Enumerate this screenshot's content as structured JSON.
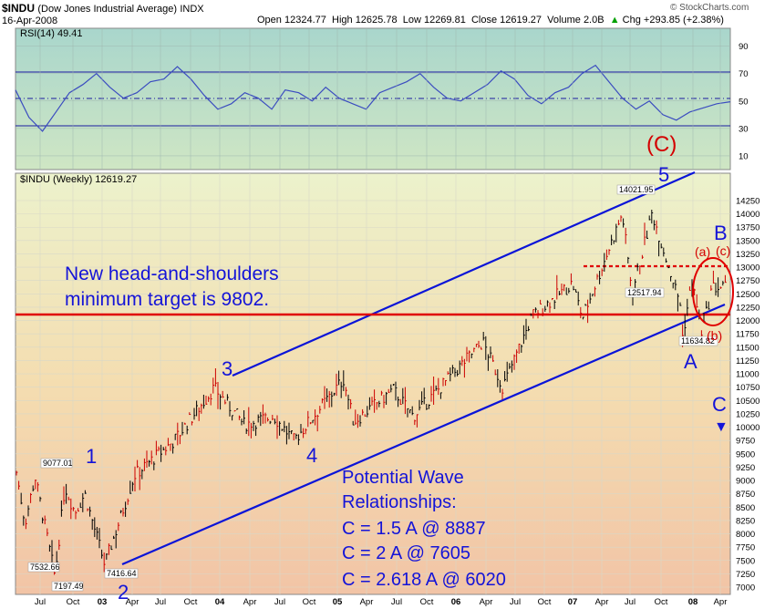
{
  "header": {
    "symbol": "$INDU",
    "name": "(Dow Jones Industrial Average)",
    "exchange": "INDX",
    "date": "16-Apr-2008",
    "open_label": "Open",
    "open": "12324.77",
    "high_label": "High",
    "high": "12625.78",
    "low_label": "Low",
    "low": "12269.81",
    "close_label": "Close",
    "close": "12619.27",
    "volume_label": "Volume",
    "volume": "2.0B",
    "chg_label": "Chg",
    "chg": "+293.85 (+2.38%)",
    "source": "© StockCharts.com",
    "up_arrow": "▲"
  },
  "rsi_panel": {
    "label": "RSI(14) 49.41",
    "ticks": [
      90,
      70,
      50,
      30,
      10
    ],
    "overbought": 70,
    "oversold": 30,
    "midline": 50,
    "colors": {
      "line": "#3b4cc0",
      "bands": "#1a1aa0",
      "bg_top": "#a9d6cc",
      "bg_bottom": "#cfe6c4"
    }
  },
  "price_panel": {
    "label": "$INDU (Weekly) 12619.27",
    "colors": {
      "up": "#000000",
      "down": "#cc0000",
      "channel": "#0a14d8",
      "neckline": "#e00000",
      "wave_text": "#1414d8",
      "corrective_text": "#d40000",
      "bg_top": "#eaf0c8",
      "bg_bottom": "#f2c9a8"
    }
  },
  "annotations": {
    "headline_line1": "New head-and-shoulders",
    "headline_line2": "minimum target is 9802.",
    "wave_title_line1": "Potential Wave",
    "wave_title_line2": "Relationships:",
    "rel1": "C = 1.5 A @ 8887",
    "rel2": "C = 2 A @ 7605",
    "rel3": "C = 2.618 A @ 6020",
    "wave_1": "1",
    "wave_2": "2",
    "wave_3": "3",
    "wave_4": "4",
    "wave_5": "5",
    "wave_C_major": "(C)",
    "wave_A": "A",
    "wave_B": "B",
    "wave_C": "C",
    "sub_a": "(a)",
    "sub_b": "(b)",
    "sub_c": "(c)",
    "down_arrow": "▼",
    "lbl_9077": "9077.01",
    "lbl_7532": "7532.66",
    "lbl_7197": "7197.49",
    "lbl_7416": "7416.64",
    "lbl_14021": "14021.95",
    "lbl_12517": "12517.94",
    "lbl_11634": "11634.82"
  },
  "chart_data": {
    "type": "line",
    "title": "$INDU (Dow Jones Industrial Average) INDX",
    "timeframe": "Weekly",
    "x_ticks": [
      "Jul",
      "Oct",
      "03",
      "Apr",
      "Jul",
      "Oct",
      "04",
      "Apr",
      "Jul",
      "Oct",
      "05",
      "Apr",
      "Jul",
      "Oct",
      "06",
      "Apr",
      "Jul",
      "Oct",
      "07",
      "Apr",
      "Jul",
      "Oct",
      "08",
      "Apr"
    ],
    "y_ticks": [
      7000,
      7250,
      7500,
      7750,
      8000,
      8250,
      8500,
      8750,
      9000,
      9250,
      9500,
      9750,
      10000,
      10250,
      10500,
      10750,
      11000,
      11250,
      11500,
      11750,
      12000,
      12250,
      12500,
      12750,
      13000,
      13250,
      13500,
      13750,
      14000,
      14250
    ],
    "ylim": [
      6900,
      14550
    ],
    "price_path_approx": [
      [
        "2002-06",
        9300
      ],
      [
        "2002-07",
        8200
      ],
      [
        "2002-08",
        9077
      ],
      [
        "2002-10",
        7197
      ],
      [
        "2002-11",
        8900
      ],
      [
        "2002-12",
        8400
      ],
      [
        "2003-01",
        8750
      ],
      [
        "2003-03",
        7416
      ],
      [
        "2003-06",
        9100
      ],
      [
        "2003-10",
        9750
      ],
      [
        "2004-02",
        10737
      ],
      [
        "2004-05",
        10050
      ],
      [
        "2004-08",
        10200
      ],
      [
        "2004-10",
        9750
      ],
      [
        "2005-03",
        10900
      ],
      [
        "2005-04",
        10100
      ],
      [
        "2005-08",
        10700
      ],
      [
        "2005-10",
        10200
      ],
      [
        "2006-05",
        11600
      ],
      [
        "2006-07",
        10750
      ],
      [
        "2006-10",
        12100
      ],
      [
        "2007-02",
        12700
      ],
      [
        "2007-03",
        12050
      ],
      [
        "2007-07",
        14000
      ],
      [
        "2007-08",
        12517
      ],
      [
        "2007-10",
        14021
      ],
      [
        "2008-01",
        12200
      ],
      [
        "2008-01",
        11634
      ],
      [
        "2008-02",
        12750
      ],
      [
        "2008-03",
        11750
      ],
      [
        "2008-04",
        12619
      ]
    ],
    "labeled_points": [
      {
        "label": "9077.01",
        "value": 9077.01
      },
      {
        "label": "7532.66",
        "value": 7532.66
      },
      {
        "label": "7197.49",
        "value": 7197.49
      },
      {
        "label": "7416.64",
        "value": 7416.64
      },
      {
        "label": "14021.95",
        "value": 14021.95
      },
      {
        "label": "12517.94",
        "value": 12517.94
      },
      {
        "label": "11634.82",
        "value": 11634.82
      }
    ],
    "neckline": 11900,
    "dotted_resistance": 12800,
    "rsi_series_approx": [
      58,
      38,
      28,
      42,
      56,
      62,
      70,
      60,
      52,
      56,
      64,
      66,
      75,
      66,
      54,
      44,
      48,
      56,
      52,
      44,
      58,
      56,
      50,
      60,
      52,
      48,
      44,
      56,
      60,
      64,
      70,
      60,
      52,
      50,
      56,
      62,
      72,
      66,
      54,
      48,
      56,
      60,
      70,
      76,
      64,
      52,
      44,
      50,
      40,
      36,
      42,
      45,
      48,
      49.41
    ],
    "grid": true,
    "legend": "top-left"
  }
}
